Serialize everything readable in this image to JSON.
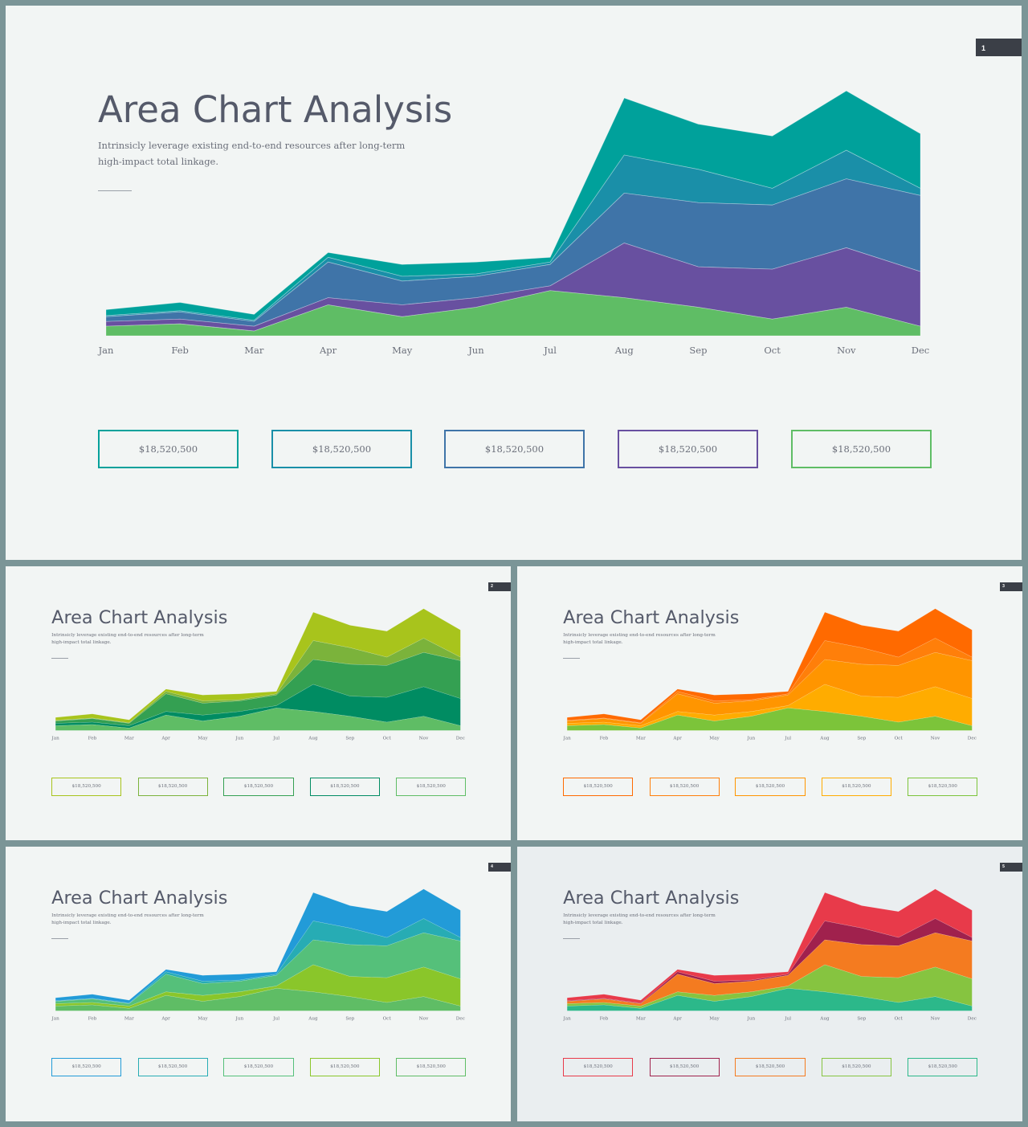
{
  "slides": [
    {
      "number": "1",
      "title": "Area Chart Analysis",
      "subtitle_line1": "Intrinsicly leverage existing end-to-end resources after long-term",
      "subtitle_line2": "high-impact total linkage.",
      "box_values": [
        "$18,520,500",
        "$18,520,500",
        "$18,520,500",
        "$18,520,500",
        "$18,520,500"
      ],
      "colors": [
        "#00a19b",
        "#1a8fa8",
        "#3f74a8",
        "#6850a0",
        "#5fbd65"
      ],
      "tinted": false
    },
    {
      "number": "2",
      "title": "Area Chart Analysis",
      "subtitle_line1": "Intrinsicly leverage existing end-to-end resources after long-term",
      "subtitle_line2": "high-impact total linkage.",
      "box_values": [
        "$18,520,500",
        "$18,520,500",
        "$18,520,500",
        "$18,520,500",
        "$18,520,500"
      ],
      "colors": [
        "#a8c41c",
        "#7bb33b",
        "#34a052",
        "#008c62",
        "#5fbd65"
      ],
      "tinted": false
    },
    {
      "number": "3",
      "title": "Area Chart Analysis",
      "subtitle_line1": "Intrinsicly leverage existing end-to-end resources after long-term",
      "subtitle_line2": "high-impact total linkage.",
      "box_values": [
        "$18,520,500",
        "$18,520,500",
        "$18,520,500",
        "$18,520,500",
        "$18,520,500"
      ],
      "colors": [
        "#ff6a00",
        "#ff7f0a",
        "#ff9500",
        "#ffac00",
        "#7cc43a"
      ],
      "tinted": false
    },
    {
      "number": "4",
      "title": "Area Chart Analysis",
      "subtitle_line1": "Intrinsicly leverage existing end-to-end resources after long-term",
      "subtitle_line2": "high-impact total linkage.",
      "box_values": [
        "$18,520,500",
        "$18,520,500",
        "$18,520,500",
        "$18,520,500",
        "$18,520,500"
      ],
      "colors": [
        "#229bd8",
        "#27acb4",
        "#55c07a",
        "#8ac62a",
        "#5fbd65"
      ],
      "tinted": false
    },
    {
      "number": "5",
      "title": "Area Chart Analysis",
      "subtitle_line1": "Intrinsicly leverage existing end-to-end resources after long-term",
      "subtitle_line2": "high-impact total linkage.",
      "box_values": [
        "$18,520,500",
        "$18,520,500",
        "$18,520,500",
        "$18,520,500",
        "$18,520,500"
      ],
      "colors": [
        "#e83a4a",
        "#a0214d",
        "#f47b20",
        "#86c440",
        "#2cb88a"
      ],
      "tinted": true
    }
  ],
  "chart_data": {
    "type": "area",
    "stacked": true,
    "categories": [
      "Jan",
      "Feb",
      "Mar",
      "Apr",
      "May",
      "Jun",
      "Jul",
      "Aug",
      "Sep",
      "Oct",
      "Nov",
      "Dec"
    ],
    "ylim": [
      0,
      100
    ],
    "grid": false,
    "series": [
      {
        "values": [
          4,
          5,
          2,
          13,
          8,
          12,
          19,
          16,
          12,
          7,
          12,
          4
        ]
      },
      {
        "values": [
          2,
          2,
          2,
          3,
          5,
          4,
          2,
          23,
          17,
          21,
          25,
          23
        ]
      },
      {
        "values": [
          2,
          3,
          2,
          15,
          10,
          9,
          9,
          21,
          27,
          27,
          29,
          32
        ]
      },
      {
        "values": [
          0.5,
          0.5,
          0.5,
          2,
          2,
          1,
          1,
          16,
          14,
          7,
          12,
          3
        ]
      },
      {
        "values": [
          2.5,
          3.5,
          2.5,
          2,
          5,
          5,
          2,
          24,
          19,
          22,
          25,
          23
        ]
      }
    ]
  }
}
